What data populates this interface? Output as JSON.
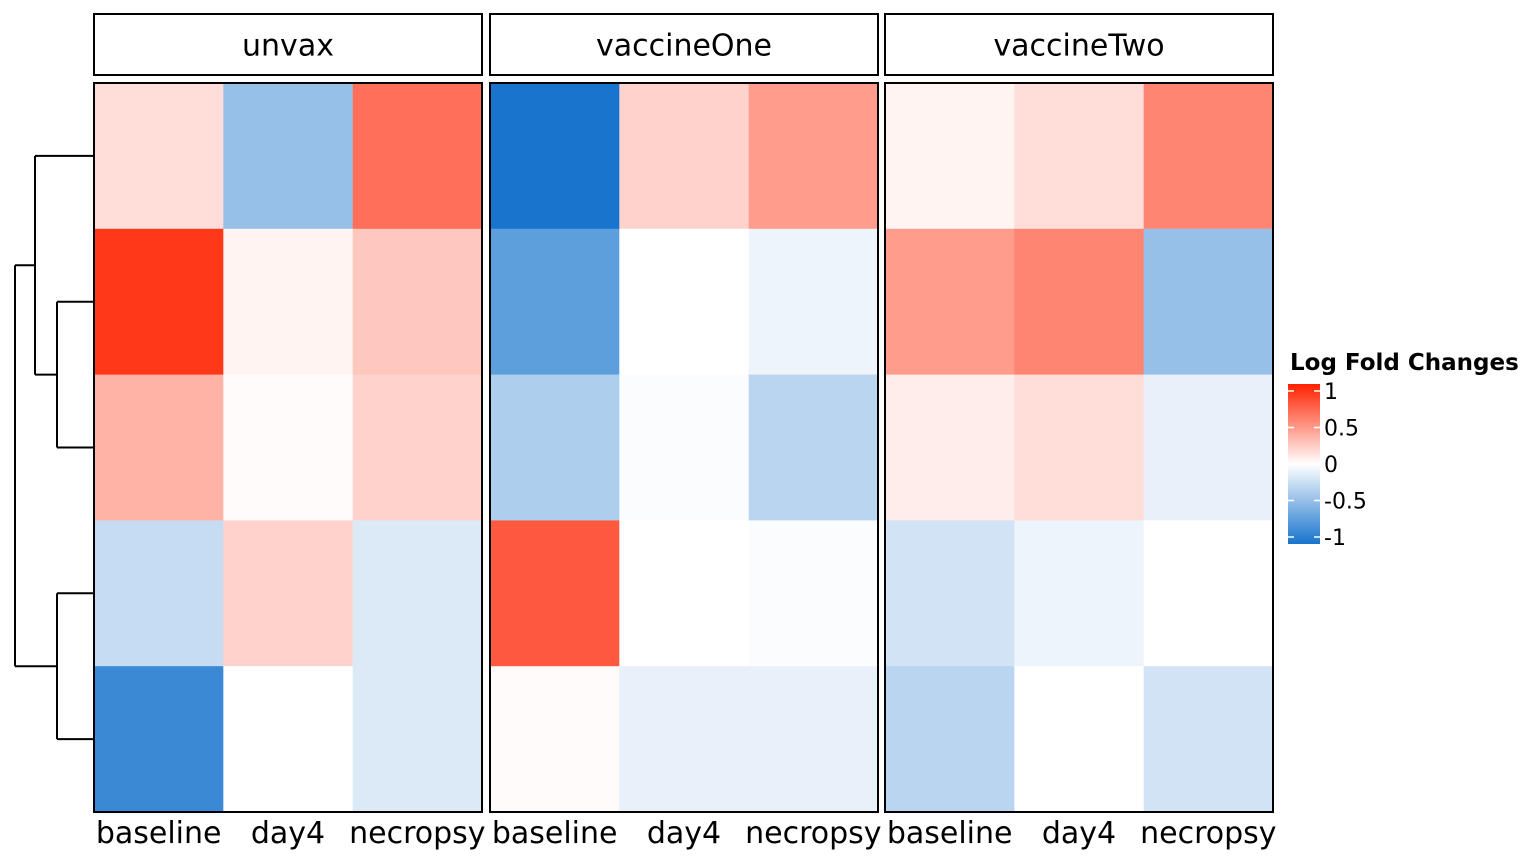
{
  "chart_data": {
    "type": "heatmap",
    "title": "",
    "xlabel": "",
    "ylabel": "",
    "panels": [
      "unvax",
      "vaccineOne",
      "vaccineTwo"
    ],
    "columns": [
      "baseline",
      "day4",
      "necropsy"
    ],
    "rows": 5,
    "values": {
      "unvax": [
        [
          0.15,
          -0.45,
          0.65
        ],
        [
          0.9,
          0.05,
          0.25
        ],
        [
          0.35,
          0.02,
          0.2
        ],
        [
          -0.25,
          0.2,
          -0.15
        ],
        [
          -0.85,
          0.0,
          -0.15
        ]
      ],
      "vaccineOne": [
        [
          -1.0,
          0.2,
          0.45
        ],
        [
          -0.7,
          0.0,
          -0.08
        ],
        [
          -0.35,
          -0.02,
          -0.3
        ],
        [
          0.75,
          0.0,
          -0.02
        ],
        [
          0.02,
          -0.1,
          -0.1
        ]
      ],
      "vaccineTwo": [
        [
          0.05,
          0.15,
          0.55
        ],
        [
          0.45,
          0.55,
          -0.45
        ],
        [
          0.08,
          0.15,
          -0.1
        ],
        [
          -0.2,
          -0.08,
          0.0
        ],
        [
          -0.3,
          0.0,
          -0.2
        ]
      ]
    },
    "dendrogram": "row",
    "legend": {
      "title": "Log Fold Changes",
      "ticks": [
        "1",
        "0.5",
        "0",
        "-0.5",
        "-1"
      ],
      "tick_values": [
        1,
        0.5,
        0,
        -0.5,
        -1
      ],
      "range": [
        -1,
        1
      ],
      "placement": "right"
    },
    "colors": {
      "low": "#1874cd",
      "mid": "#ffffff",
      "high": "#ff2200"
    }
  }
}
